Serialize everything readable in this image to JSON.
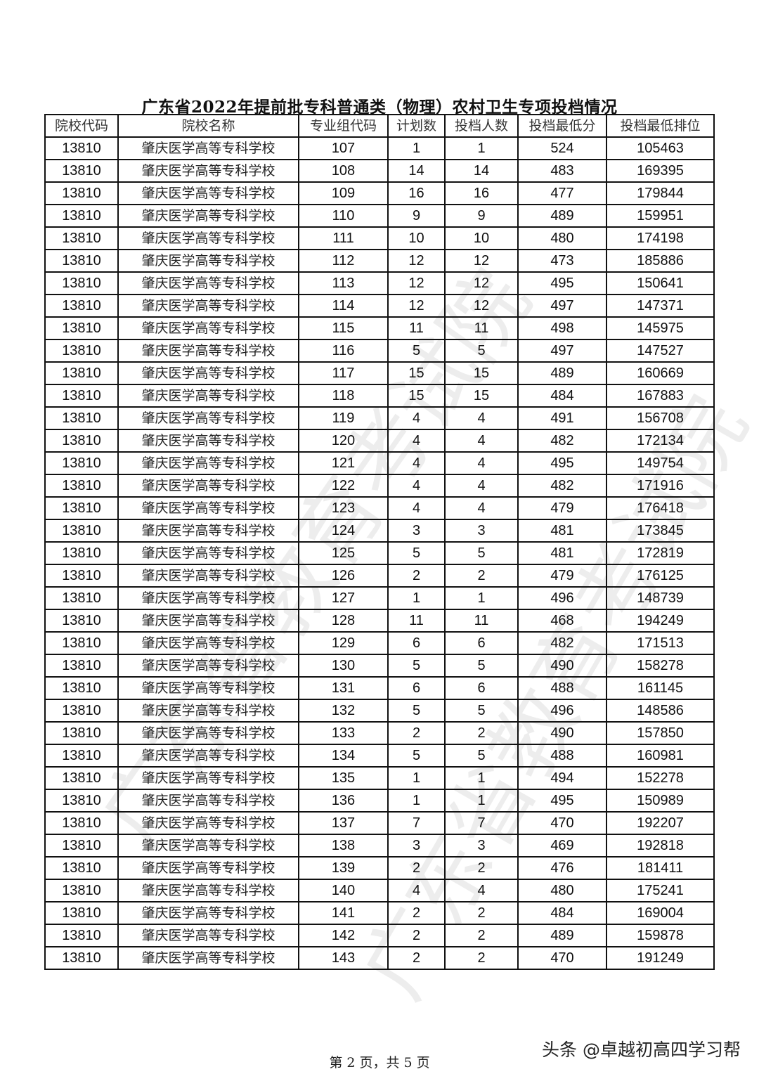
{
  "title": "广东省2022年提前批专科普通类（物理）农村卫生专项投档情况",
  "columns": [
    "院校代码",
    "院校名称",
    "专业组代码",
    "计划数",
    "投档人数",
    "投档最低分",
    "投档最低排位"
  ],
  "rows": [
    [
      "13810",
      "肇庆医学高等专科学校",
      "107",
      "1",
      "1",
      "524",
      "105463"
    ],
    [
      "13810",
      "肇庆医学高等专科学校",
      "108",
      "14",
      "14",
      "483",
      "169395"
    ],
    [
      "13810",
      "肇庆医学高等专科学校",
      "109",
      "16",
      "16",
      "477",
      "179844"
    ],
    [
      "13810",
      "肇庆医学高等专科学校",
      "110",
      "9",
      "9",
      "489",
      "159951"
    ],
    [
      "13810",
      "肇庆医学高等专科学校",
      "111",
      "10",
      "10",
      "480",
      "174198"
    ],
    [
      "13810",
      "肇庆医学高等专科学校",
      "112",
      "12",
      "12",
      "473",
      "185886"
    ],
    [
      "13810",
      "肇庆医学高等专科学校",
      "113",
      "12",
      "12",
      "495",
      "150641"
    ],
    [
      "13810",
      "肇庆医学高等专科学校",
      "114",
      "12",
      "12",
      "497",
      "147371"
    ],
    [
      "13810",
      "肇庆医学高等专科学校",
      "115",
      "11",
      "11",
      "498",
      "145975"
    ],
    [
      "13810",
      "肇庆医学高等专科学校",
      "116",
      "5",
      "5",
      "497",
      "147527"
    ],
    [
      "13810",
      "肇庆医学高等专科学校",
      "117",
      "15",
      "15",
      "489",
      "160669"
    ],
    [
      "13810",
      "肇庆医学高等专科学校",
      "118",
      "15",
      "15",
      "484",
      "167883"
    ],
    [
      "13810",
      "肇庆医学高等专科学校",
      "119",
      "4",
      "4",
      "491",
      "156708"
    ],
    [
      "13810",
      "肇庆医学高等专科学校",
      "120",
      "4",
      "4",
      "482",
      "172134"
    ],
    [
      "13810",
      "肇庆医学高等专科学校",
      "121",
      "4",
      "4",
      "495",
      "149754"
    ],
    [
      "13810",
      "肇庆医学高等专科学校",
      "122",
      "4",
      "4",
      "482",
      "171916"
    ],
    [
      "13810",
      "肇庆医学高等专科学校",
      "123",
      "4",
      "4",
      "479",
      "176418"
    ],
    [
      "13810",
      "肇庆医学高等专科学校",
      "124",
      "3",
      "3",
      "481",
      "173845"
    ],
    [
      "13810",
      "肇庆医学高等专科学校",
      "125",
      "5",
      "5",
      "481",
      "172819"
    ],
    [
      "13810",
      "肇庆医学高等专科学校",
      "126",
      "2",
      "2",
      "479",
      "176125"
    ],
    [
      "13810",
      "肇庆医学高等专科学校",
      "127",
      "1",
      "1",
      "496",
      "148739"
    ],
    [
      "13810",
      "肇庆医学高等专科学校",
      "128",
      "11",
      "11",
      "468",
      "194249"
    ],
    [
      "13810",
      "肇庆医学高等专科学校",
      "129",
      "6",
      "6",
      "482",
      "171513"
    ],
    [
      "13810",
      "肇庆医学高等专科学校",
      "130",
      "5",
      "5",
      "490",
      "158278"
    ],
    [
      "13810",
      "肇庆医学高等专科学校",
      "131",
      "6",
      "6",
      "488",
      "161145"
    ],
    [
      "13810",
      "肇庆医学高等专科学校",
      "132",
      "5",
      "5",
      "496",
      "148586"
    ],
    [
      "13810",
      "肇庆医学高等专科学校",
      "133",
      "2",
      "2",
      "490",
      "157850"
    ],
    [
      "13810",
      "肇庆医学高等专科学校",
      "134",
      "5",
      "5",
      "488",
      "160981"
    ],
    [
      "13810",
      "肇庆医学高等专科学校",
      "135",
      "1",
      "1",
      "494",
      "152278"
    ],
    [
      "13810",
      "肇庆医学高等专科学校",
      "136",
      "1",
      "1",
      "495",
      "150989"
    ],
    [
      "13810",
      "肇庆医学高等专科学校",
      "137",
      "7",
      "7",
      "470",
      "192207"
    ],
    [
      "13810",
      "肇庆医学高等专科学校",
      "138",
      "3",
      "3",
      "469",
      "192818"
    ],
    [
      "13810",
      "肇庆医学高等专科学校",
      "139",
      "2",
      "2",
      "476",
      "181411"
    ],
    [
      "13810",
      "肇庆医学高等专科学校",
      "140",
      "4",
      "4",
      "480",
      "175241"
    ],
    [
      "13810",
      "肇庆医学高等专科学校",
      "141",
      "2",
      "2",
      "484",
      "169004"
    ],
    [
      "13810",
      "肇庆医学高等专科学校",
      "142",
      "2",
      "2",
      "489",
      "159878"
    ],
    [
      "13810",
      "肇庆医学高等专科学校",
      "143",
      "2",
      "2",
      "470",
      "191249"
    ]
  ],
  "footer": "第 2 页，共 5 页",
  "watermark": "头条 @卓越初高四学习帮",
  "background_stamp": "广东省教育考试院"
}
